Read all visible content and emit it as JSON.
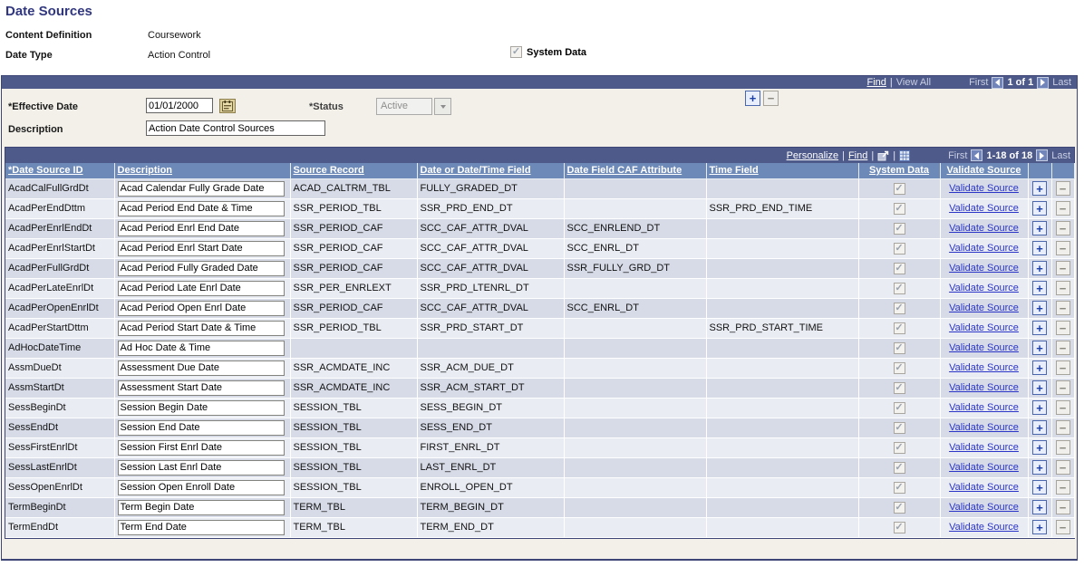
{
  "page": {
    "title": "Date Sources"
  },
  "info": {
    "content_definition_label": "Content Definition",
    "content_definition_value": "Coursework",
    "date_type_label": "Date Type",
    "date_type_value": "Action Control",
    "system_data_label": "System Data"
  },
  "icons": {
    "check": "✓"
  },
  "controls": {
    "plus_label": "+",
    "minus_label": "−"
  },
  "scroll_area": {
    "find": "Find",
    "sep": "|",
    "view_all": "View All",
    "first": "First",
    "position": "1 of 1",
    "last": "Last",
    "effective_date_label": "*Effective Date",
    "effective_date_value": "01/01/2000",
    "status_label": "*Status",
    "status_value": "Active",
    "description_label": "Description",
    "description_value": "Action Date Control Sources"
  },
  "grid": {
    "toolbar": {
      "personalize": "Personalize",
      "find": "Find",
      "sep": "|",
      "first": "First",
      "position": "1-18 of 18",
      "last": "Last"
    },
    "columns": [
      "*Date Source ID",
      "Description",
      "Source Record",
      "Date or Date/Time Field",
      "Date Field CAF Attribute",
      "Time Field",
      "System Data",
      "Validate Source"
    ],
    "validate_link": "Validate Source",
    "rows": [
      {
        "id": "AcadCalFullGrdDt",
        "description": "Acad Calendar Fully Grade Date",
        "source_record": "ACAD_CALTRM_TBL",
        "date_field": "FULLY_GRADED_DT",
        "caf_attribute": "",
        "time_field": ""
      },
      {
        "id": "AcadPerEndDttm",
        "description": "Acad Period End Date & Time",
        "source_record": "SSR_PERIOD_TBL",
        "date_field": "SSR_PRD_END_DT",
        "caf_attribute": "",
        "time_field": "SSR_PRD_END_TIME"
      },
      {
        "id": "AcadPerEnrlEndDt",
        "description": "Acad Period Enrl End Date",
        "source_record": "SSR_PERIOD_CAF",
        "date_field": "SCC_CAF_ATTR_DVAL",
        "caf_attribute": "SCC_ENRLEND_DT",
        "time_field": ""
      },
      {
        "id": "AcadPerEnrlStartDt",
        "description": "Acad Period Enrl Start Date",
        "source_record": "SSR_PERIOD_CAF",
        "date_field": "SCC_CAF_ATTR_DVAL",
        "caf_attribute": "SCC_ENRL_DT",
        "time_field": ""
      },
      {
        "id": "AcadPerFullGrdDt",
        "description": "Acad Period Fully Graded Date",
        "source_record": "SSR_PERIOD_CAF",
        "date_field": "SCC_CAF_ATTR_DVAL",
        "caf_attribute": "SSR_FULLY_GRD_DT",
        "time_field": ""
      },
      {
        "id": "AcadPerLateEnrlDt",
        "description": "Acad Period Late Enrl Date",
        "source_record": "SSR_PER_ENRLEXT",
        "date_field": "SSR_PRD_LTENRL_DT",
        "caf_attribute": "",
        "time_field": ""
      },
      {
        "id": "AcadPerOpenEnrlDt",
        "description": "Acad Period Open Enrl Date",
        "source_record": "SSR_PERIOD_CAF",
        "date_field": "SCC_CAF_ATTR_DVAL",
        "caf_attribute": "SCC_ENRL_DT",
        "time_field": ""
      },
      {
        "id": "AcadPerStartDttm",
        "description": "Acad Period Start Date & Time",
        "source_record": "SSR_PERIOD_TBL",
        "date_field": "SSR_PRD_START_DT",
        "caf_attribute": "",
        "time_field": "SSR_PRD_START_TIME"
      },
      {
        "id": "AdHocDateTime",
        "description": "Ad Hoc Date & Time",
        "source_record": "",
        "date_field": "",
        "caf_attribute": "",
        "time_field": ""
      },
      {
        "id": "AssmDueDt",
        "description": "Assessment Due Date",
        "source_record": "SSR_ACMDATE_INC",
        "date_field": "SSR_ACM_DUE_DT",
        "caf_attribute": "",
        "time_field": ""
      },
      {
        "id": "AssmStartDt",
        "description": "Assessment Start Date",
        "source_record": "SSR_ACMDATE_INC",
        "date_field": "SSR_ACM_START_DT",
        "caf_attribute": "",
        "time_field": ""
      },
      {
        "id": "SessBeginDt",
        "description": "Session Begin Date",
        "source_record": "SESSION_TBL",
        "date_field": "SESS_BEGIN_DT",
        "caf_attribute": "",
        "time_field": ""
      },
      {
        "id": "SessEndDt",
        "description": "Session End Date",
        "source_record": "SESSION_TBL",
        "date_field": "SESS_END_DT",
        "caf_attribute": "",
        "time_field": ""
      },
      {
        "id": "SessFirstEnrlDt",
        "description": "Session First Enrl Date",
        "source_record": "SESSION_TBL",
        "date_field": "FIRST_ENRL_DT",
        "caf_attribute": "",
        "time_field": ""
      },
      {
        "id": "SessLastEnrlDt",
        "description": "Session Last Enrl Date",
        "source_record": "SESSION_TBL",
        "date_field": "LAST_ENRL_DT",
        "caf_attribute": "",
        "time_field": ""
      },
      {
        "id": "SessOpenEnrlDt",
        "description": "Session Open Enroll Date",
        "source_record": "SESSION_TBL",
        "date_field": "ENROLL_OPEN_DT",
        "caf_attribute": "",
        "time_field": ""
      },
      {
        "id": "TermBeginDt",
        "description": "Term Begin Date",
        "source_record": "TERM_TBL",
        "date_field": "TERM_BEGIN_DT",
        "caf_attribute": "",
        "time_field": ""
      },
      {
        "id": "TermEndDt",
        "description": "Term End Date",
        "source_record": "TERM_TBL",
        "date_field": "TERM_END_DT",
        "caf_attribute": "",
        "time_field": ""
      }
    ]
  },
  "colors": {
    "title": "#31377e",
    "navy_bar": "#4e5a8a",
    "column_header": "#6c89b8",
    "row_odd": "#d6dbe7",
    "row_even": "#e9ecf3",
    "groupbox_bg": "#f2f0e9",
    "link": "#2b35c8"
  }
}
